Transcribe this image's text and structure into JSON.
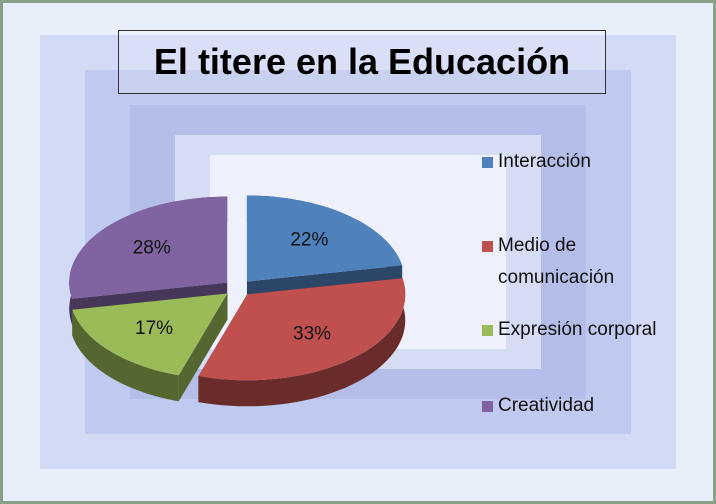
{
  "chart_data": {
    "type": "pie",
    "title": "El titere en la Educación",
    "categories": [
      "Interacción",
      "Medio de comunicación",
      "Expresión corporal",
      "Creatividad"
    ],
    "values": [
      22,
      33,
      17,
      28
    ],
    "value_labels": [
      "22%",
      "33%",
      "17%",
      "28%"
    ],
    "colors": [
      "#4f81bd",
      "#c0504d",
      "#9bbb59",
      "#8064a2"
    ],
    "legend": "right"
  }
}
